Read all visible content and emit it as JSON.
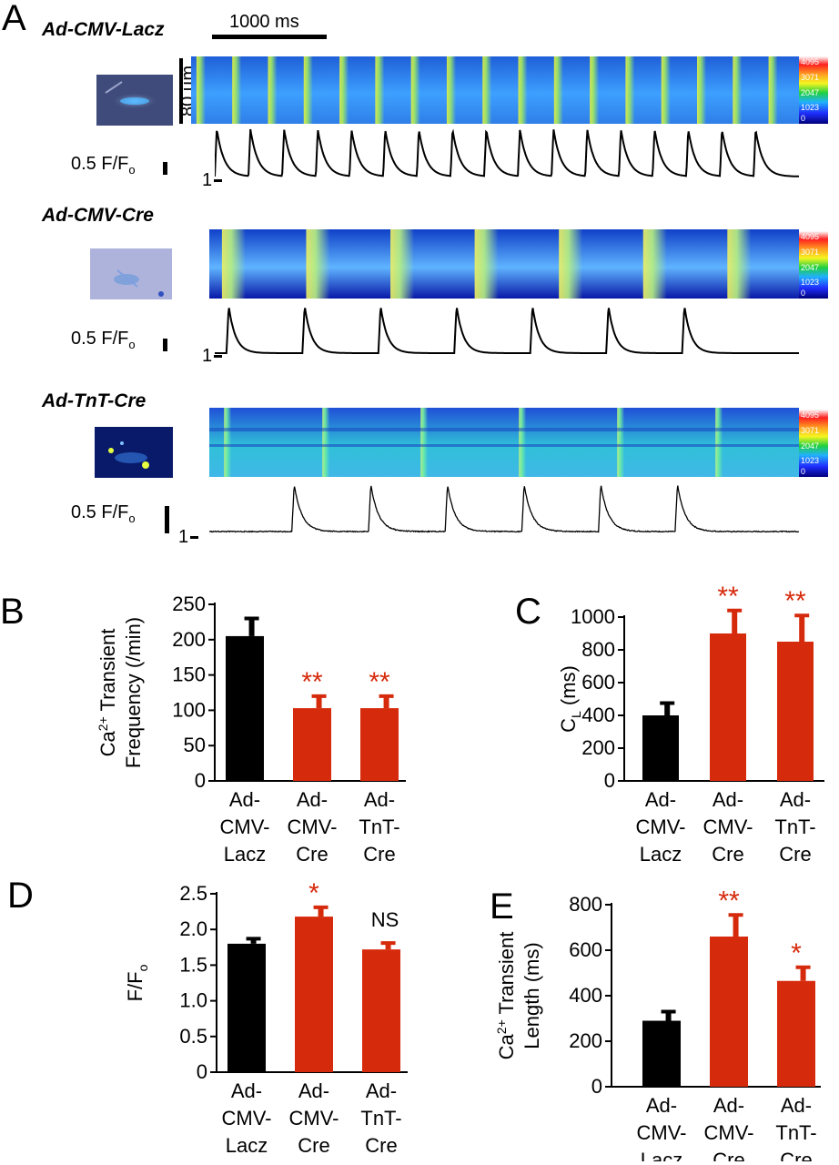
{
  "panel_a": {
    "label": "A",
    "time_scale": "1000 ms",
    "space_scale": "80 µm",
    "amp_scale": "0.5 F/F",
    "amp_scale_sub": "o",
    "baseline_mark": "1",
    "colorbar_ticks": [
      "4095",
      "3071",
      "2047",
      "1023",
      "0"
    ],
    "rows": [
      {
        "name": "Ad-CMV-Lacz",
        "peaks": 17
      },
      {
        "name": "Ad-CMV-Cre",
        "peaks": 7
      },
      {
        "name": "Ad-TnT-Cre",
        "peaks": 6
      }
    ]
  },
  "colors": {
    "control": "#000000",
    "treated": "#d62a0c",
    "sig": "#d62a0c"
  },
  "chart_data": [
    {
      "panel": "B",
      "type": "bar",
      "ylabel": "Ca2+ Transient Frequency (/min)",
      "ylabel_line1_pre": "Ca",
      "ylabel_line1_sup": "2+",
      "ylabel_line1_post": " Transient",
      "ylabel_line2": "Frequency (/min)",
      "ylim": [
        0,
        250
      ],
      "yticks": [
        0,
        50,
        100,
        150,
        200,
        250
      ],
      "yticklabels": [
        "0",
        "50",
        "100",
        "150",
        "200",
        "250"
      ],
      "categories": [
        "Ad-CMV-Lacz",
        "Ad-CMV-Cre",
        "Ad-TnT-Cre"
      ],
      "category_lines": [
        [
          "Ad-",
          "CMV-",
          "Lacz"
        ],
        [
          "Ad-",
          "CMV-",
          "Cre"
        ],
        [
          "Ad-",
          "TnT-",
          "Cre"
        ]
      ],
      "values": [
        205,
        103,
        103
      ],
      "errors": [
        25,
        17,
        17
      ],
      "annotations": [
        "",
        "**",
        "**"
      ]
    },
    {
      "panel": "C",
      "type": "bar",
      "ylabel": "CL (ms)",
      "ylabel_line1_pre": "C",
      "ylabel_line1_sub": "L",
      "ylabel_line1_post": " (ms)",
      "ylim": [
        0,
        1000
      ],
      "yticks": [
        0,
        200,
        400,
        600,
        800,
        1000
      ],
      "yticklabels": [
        "0",
        "200",
        "400",
        "600",
        "800",
        "1000"
      ],
      "categories": [
        "Ad-CMV-Lacz",
        "Ad-CMV-Cre",
        "Ad-TnT-Cre"
      ],
      "category_lines": [
        [
          "Ad-",
          "CMV-",
          "Lacz"
        ],
        [
          "Ad-",
          "CMV-",
          "Cre"
        ],
        [
          "Ad-",
          "TnT-",
          "Cre"
        ]
      ],
      "values": [
        400,
        900,
        850
      ],
      "errors": [
        75,
        140,
        160
      ],
      "annotations": [
        "",
        "**",
        "**"
      ]
    },
    {
      "panel": "D",
      "type": "bar",
      "ylabel": "F/Fo",
      "ylabel_line1_pre": "F/F",
      "ylabel_line1_sub": "o",
      "ylim": [
        0,
        2.5
      ],
      "yticks": [
        0,
        0.5,
        1.0,
        1.5,
        2.0,
        2.5
      ],
      "yticklabels": [
        "0",
        "0.5",
        "1.0",
        "1.5",
        "2.0",
        "2.5"
      ],
      "categories": [
        "Ad-CMV-Lacz",
        "Ad-CMV-Cre",
        "Ad-TnT-Cre"
      ],
      "category_lines": [
        [
          "Ad-",
          "CMV-",
          "Lacz"
        ],
        [
          "Ad-",
          "CMV-",
          "Cre"
        ],
        [
          "Ad-",
          "TnT-",
          "Cre"
        ]
      ],
      "values": [
        1.8,
        2.18,
        1.72
      ],
      "errors": [
        0.07,
        0.13,
        0.09
      ],
      "annotations": [
        "",
        "*",
        "NS"
      ]
    },
    {
      "panel": "E",
      "type": "bar",
      "ylabel": "Ca2+ Transient Length (ms)",
      "ylabel_line1_pre": "Ca",
      "ylabel_line1_sup": "2+",
      "ylabel_line1_post": " Transient",
      "ylabel_line2": "Length (ms)",
      "ylim": [
        0,
        800
      ],
      "yticks": [
        0,
        200,
        400,
        600,
        800
      ],
      "yticklabels": [
        "0",
        "200",
        "400",
        "600",
        "800"
      ],
      "categories": [
        "Ad-CMV-Lacz",
        "Ad-CMV-Cre",
        "Ad-TnT-Cre"
      ],
      "category_lines": [
        [
          "Ad-",
          "CMV-",
          "Lacz"
        ],
        [
          "Ad-",
          "CMV-",
          "Cre"
        ],
        [
          "Ad-",
          "TnT-",
          "Cre"
        ]
      ],
      "values": [
        290,
        660,
        465
      ],
      "errors": [
        40,
        95,
        60
      ],
      "annotations": [
        "",
        "**",
        "*"
      ]
    }
  ]
}
